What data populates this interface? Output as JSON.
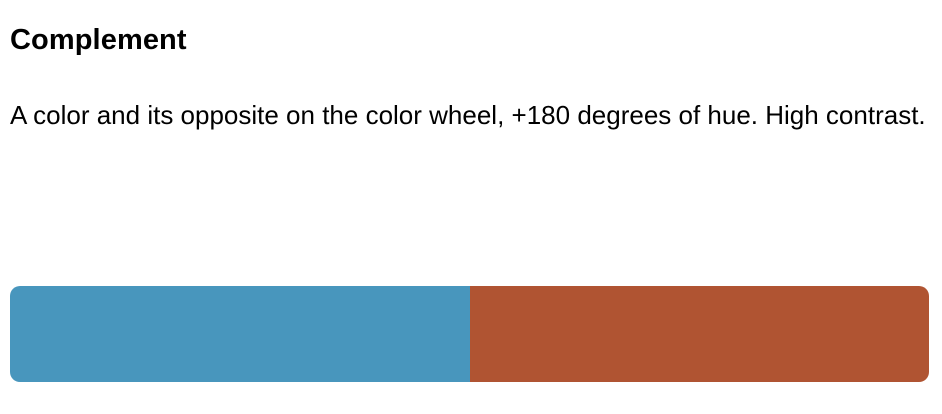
{
  "scheme": {
    "title": "Complement",
    "description": "A color and its opposite on the color wheel, +180 degrees of hue. High contrast."
  },
  "swatches": [
    {
      "color": "#4896bd"
    },
    {
      "color": "#b05432"
    }
  ]
}
